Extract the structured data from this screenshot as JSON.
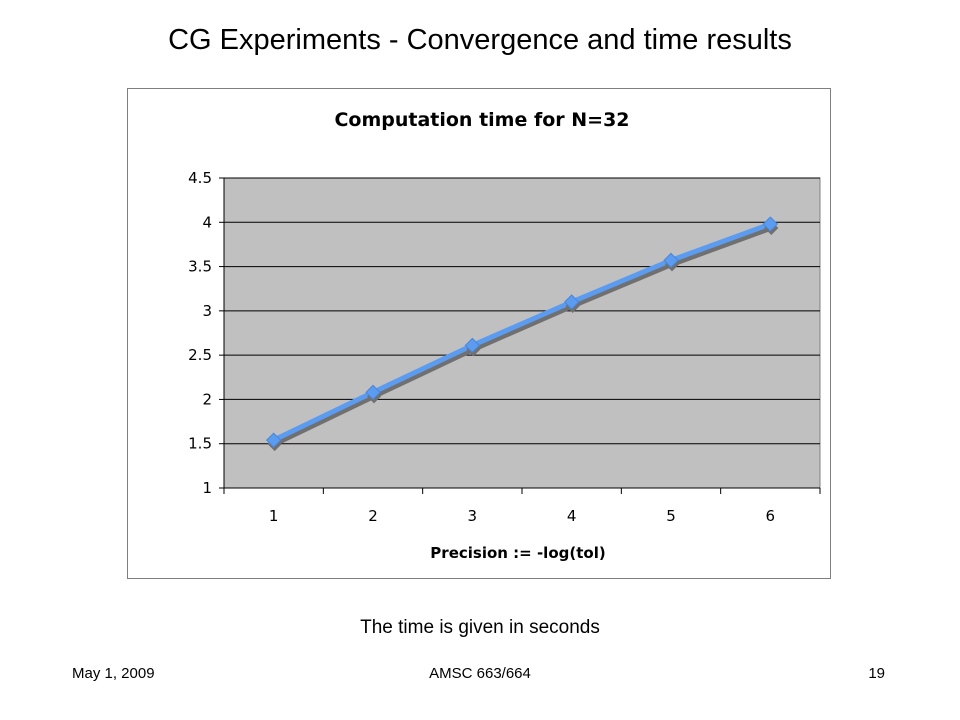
{
  "slide": {
    "title": "CG Experiments - Convergence and time results",
    "caption": "The time is given in seconds"
  },
  "footer": {
    "date": "May 1, 2009",
    "course": "AMSC 663/664",
    "page": "19"
  },
  "chart_data": {
    "type": "line",
    "title": "Computation time for N=32",
    "xlabel": "Precision := -log(tol)",
    "ylabel": "",
    "categories": [
      "1",
      "2",
      "3",
      "4",
      "5",
      "6"
    ],
    "series": [
      {
        "values": [
          1.54,
          2.08,
          2.61,
          3.1,
          3.57,
          3.98
        ]
      }
    ],
    "ylim": [
      1,
      4.5
    ],
    "yticks": [
      "1",
      "1.5",
      "2",
      "2.5",
      "3",
      "3.5",
      "4",
      "4.5"
    ],
    "grid": true,
    "legend": "none",
    "colors": {
      "plot_area": "#c0c0c0",
      "line": "#5b9bf0",
      "shadow": "#707070",
      "gridline": "#000000"
    }
  }
}
